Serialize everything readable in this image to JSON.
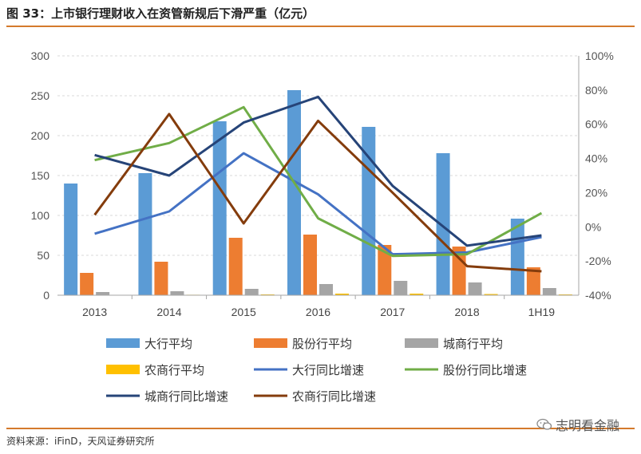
{
  "header": {
    "title": "图 33：上市银行理财收入在资管新规后下滑严重（亿元）"
  },
  "footer": {
    "source": "资料来源：iFinD，天风证券研究所",
    "watermark": "志明看金融"
  },
  "chart_data": {
    "type": "bar",
    "categories": [
      "2013",
      "2014",
      "2015",
      "2016",
      "2017",
      "2018",
      "1H19"
    ],
    "y_left": {
      "ylim": [
        0,
        300
      ],
      "ticks": [
        "0",
        "50",
        "100",
        "150",
        "200",
        "250",
        "300"
      ]
    },
    "y_right": {
      "ylim": [
        -40,
        100
      ],
      "ticks": [
        "-40%",
        "-20%",
        "0%",
        "20%",
        "40%",
        "60%",
        "80%",
        "100%"
      ]
    },
    "bar_series": [
      {
        "name": "大行平均",
        "color": "#5b9bd5",
        "values": [
          140,
          153,
          218,
          257,
          211,
          178,
          96
        ]
      },
      {
        "name": "股份行平均",
        "color": "#ed7d31",
        "values": [
          28,
          42,
          72,
          76,
          63,
          61,
          35
        ]
      },
      {
        "name": "城商行平均",
        "color": "#a5a5a5",
        "values": [
          4,
          5,
          8,
          14,
          18,
          16,
          9
        ]
      },
      {
        "name": "农商行平均",
        "color": "#ffc000",
        "values": [
          0.5,
          0.6,
          1,
          2,
          2,
          1.5,
          1
        ]
      }
    ],
    "line_series": [
      {
        "name": "大行同比增速",
        "color": "#4472c4",
        "values": [
          -4,
          9,
          43,
          19,
          -16,
          -15,
          -6
        ]
      },
      {
        "name": "股份行同比增速",
        "color": "#70ad47",
        "values": [
          39,
          49,
          70,
          5,
          -17,
          -16,
          8
        ]
      },
      {
        "name": "城商行同比增速",
        "color": "#264478",
        "values": [
          42,
          30,
          61,
          76,
          24,
          -11,
          -5
        ]
      },
      {
        "name": "农商行同比增速",
        "color": "#843c0c",
        "values": [
          7,
          66,
          2,
          62,
          20,
          -23,
          -26
        ]
      }
    ],
    "legend_position": "bottom"
  }
}
